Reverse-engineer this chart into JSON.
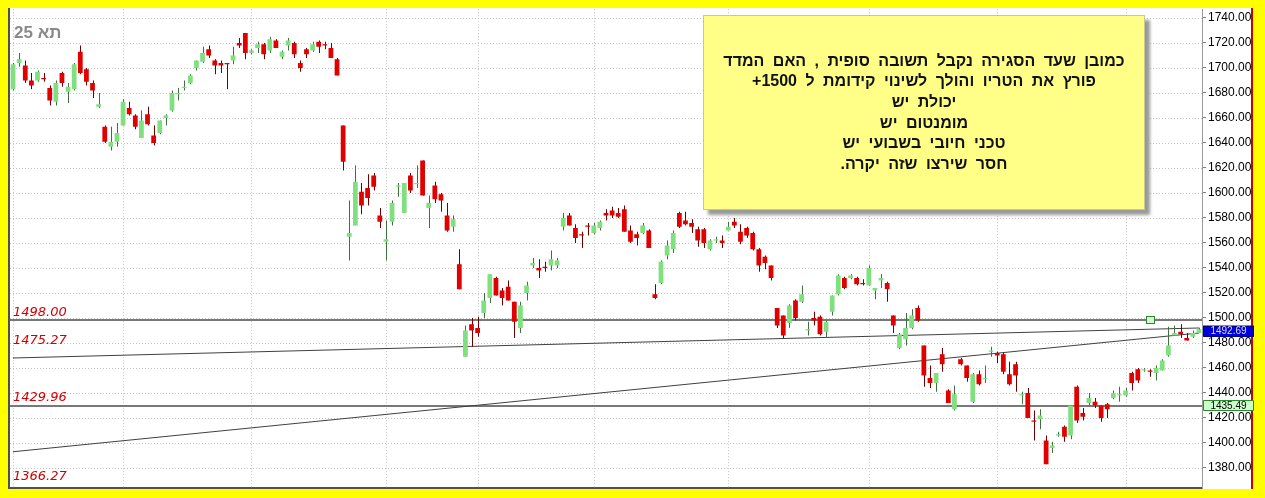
{
  "chart_data": {
    "type": "candlestick",
    "title": "תא 25",
    "categories": [
      null,
      null,
      null,
      null,
      null,
      null,
      null,
      null,
      null,
      null,
      null,
      null,
      null,
      null,
      null,
      null,
      null,
      null,
      null,
      null,
      null,
      null,
      null,
      null,
      null,
      null,
      null,
      null,
      null,
      null,
      null,
      null,
      null,
      null,
      null,
      null,
      null,
      null,
      null,
      null,
      null,
      null,
      null,
      null,
      null,
      null,
      null,
      null,
      null,
      null,
      null,
      null,
      null,
      null,
      null,
      null,
      null,
      null,
      null,
      null,
      null,
      null,
      null,
      null,
      null,
      null,
      null,
      null,
      null,
      null,
      null,
      null,
      null,
      null,
      null,
      null,
      null,
      null,
      null,
      null,
      null,
      null,
      null,
      null,
      null,
      null,
      null,
      null,
      null,
      null,
      null,
      null,
      null,
      null,
      null,
      null,
      null,
      null,
      null,
      null,
      null,
      null,
      null,
      null,
      null,
      null,
      null,
      null,
      null,
      null,
      null,
      null,
      null,
      null,
      null,
      null,
      null,
      null,
      null,
      null,
      null,
      null,
      null,
      null,
      null,
      null,
      null,
      null,
      null,
      null,
      null,
      null,
      null,
      null,
      null,
      null,
      null,
      null,
      null,
      null,
      null,
      null,
      null,
      null,
      null,
      null,
      null,
      null,
      null,
      null,
      null,
      null,
      null,
      null,
      null,
      null,
      null,
      null,
      null,
      null,
      null,
      null,
      null,
      null,
      null,
      null,
      null,
      null,
      null,
      null,
      null,
      null,
      null,
      null,
      null,
      null,
      null,
      null,
      null,
      null,
      null,
      null,
      null,
      null,
      null,
      null,
      null,
      null,
      null,
      null,
      null,
      null,
      null,
      null,
      null
    ],
    "ohlc": [
      [
        1683,
        1704,
        1682,
        1703
      ],
      [
        1704,
        1712,
        1701,
        1707
      ],
      [
        1702,
        1706,
        1688,
        1690
      ],
      [
        1690,
        1696,
        1683,
        1686
      ],
      [
        1690,
        1698,
        1689,
        1697
      ],
      [
        1692,
        1696,
        1689,
        1691
      ],
      [
        1684,
        1686,
        1670,
        1674
      ],
      [
        1673,
        1690,
        1670,
        1688
      ],
      [
        1696,
        1697,
        1685,
        1688
      ],
      [
        1681,
        1688,
        1672,
        1685
      ],
      [
        1683,
        1704,
        1682,
        1703
      ],
      [
        1713,
        1718,
        1695,
        1696
      ],
      [
        1699,
        1700,
        1686,
        1689
      ],
      [
        1688,
        1690,
        1676,
        1682
      ],
      [
        1669,
        1680,
        1668,
        1671
      ],
      [
        1653,
        1654,
        1640,
        1641
      ],
      [
        1637,
        1653,
        1634,
        1641
      ],
      [
        1641,
        1656,
        1637,
        1648
      ],
      [
        1654,
        1675,
        1654,
        1673
      ],
      [
        1668,
        1673,
        1662,
        1663
      ],
      [
        1662,
        1663,
        1651,
        1653
      ],
      [
        1644,
        1666,
        1644,
        1658
      ],
      [
        1663,
        1669,
        1654,
        1655
      ],
      [
        1646,
        1654,
        1638,
        1640
      ],
      [
        1648,
        1658,
        1647,
        1658
      ],
      [
        1660,
        1663,
        1654,
        1662
      ],
      [
        1666,
        1682,
        1665,
        1680
      ],
      [
        1679,
        1684,
        1674,
        1680
      ],
      [
        1684,
        1690,
        1682,
        1685
      ],
      [
        1688,
        1695,
        1687,
        1694
      ],
      [
        1700,
        1706,
        1698,
        1706
      ],
      [
        1705,
        1717,
        1704,
        1712
      ],
      [
        1715,
        1718,
        1708,
        1710
      ],
      [
        1706,
        1707,
        1695,
        1702
      ],
      [
        1704,
        1706,
        1696,
        1702
      ],
      [
        1704,
        1704,
        1683,
        1703
      ],
      [
        1706,
        1717,
        1703,
        1710
      ],
      [
        1720,
        1724,
        1716,
        1718
      ],
      [
        1728,
        1728,
        1707,
        1712
      ],
      [
        1712,
        1715,
        1711,
        1714
      ],
      [
        1716,
        1721,
        1712,
        1719
      ],
      [
        1719,
        1720,
        1707,
        1711
      ],
      [
        1714,
        1725,
        1712,
        1723
      ],
      [
        1722,
        1723,
        1716,
        1716
      ],
      [
        1709,
        1714,
        1707,
        1713
      ],
      [
        1718,
        1724,
        1714,
        1722
      ],
      [
        1720,
        1721,
        1708,
        1711
      ],
      [
        1704,
        1706,
        1697,
        1700
      ],
      [
        1715,
        1716,
        1708,
        1711
      ],
      [
        1714,
        1721,
        1713,
        1719
      ],
      [
        1721,
        1722,
        1712,
        1717
      ],
      [
        1719,
        1721,
        1715,
        1718
      ],
      [
        1716,
        1720,
        1708,
        1708
      ],
      [
        1707,
        1708,
        1694,
        1694
      ],
      [
        1654,
        1654,
        1618,
        1625
      ],
      [
        1565,
        1594,
        1546,
        1568
      ],
      [
        1574,
        1622,
        1574,
        1609
      ],
      [
        1601,
        1608,
        1583,
        1590
      ],
      [
        1604,
        1615,
        1590,
        1596
      ],
      [
        1614,
        1616,
        1602,
        1605
      ],
      [
        1582,
        1588,
        1572,
        1577
      ],
      [
        1561,
        1578,
        1546,
        1563
      ],
      [
        1577,
        1594,
        1574,
        1592
      ],
      [
        1605,
        1608,
        1597,
        1606
      ],
      [
        1584,
        1608,
        1584,
        1608
      ],
      [
        1614,
        1616,
        1600,
        1602
      ],
      [
        1607,
        1622,
        1604,
        1608
      ],
      [
        1626,
        1626,
        1598,
        1598
      ],
      [
        1588,
        1598,
        1572,
        1592
      ],
      [
        1606,
        1609,
        1592,
        1595
      ],
      [
        1599,
        1600,
        1585,
        1594
      ],
      [
        1582,
        1592,
        1569,
        1570
      ],
      [
        1573,
        1582,
        1569,
        1579
      ],
      [
        1543,
        1555,
        1523,
        1523
      ],
      [
        1469,
        1494,
        1469,
        1490
      ],
      [
        1495,
        1500,
        1477,
        1490
      ],
      [
        1492,
        1501,
        1485,
        1488
      ],
      [
        1504,
        1520,
        1500,
        1514
      ],
      [
        1516,
        1535,
        1512,
        1535
      ],
      [
        1532,
        1533,
        1518,
        1518
      ],
      [
        1522,
        1524,
        1510,
        1516
      ],
      [
        1525,
        1530,
        1514,
        1514
      ],
      [
        1513,
        1513,
        1484,
        1497
      ],
      [
        1492,
        1513,
        1488,
        1510
      ],
      [
        1520,
        1529,
        1514,
        1526
      ],
      [
        1542,
        1548,
        1540,
        1544
      ],
      [
        1540,
        1547,
        1532,
        1538
      ],
      [
        1541,
        1545,
        1537,
        1540
      ],
      [
        1542,
        1554,
        1538,
        1547
      ],
      [
        1542,
        1548,
        1540,
        1546
      ],
      [
        1573,
        1584,
        1570,
        1580
      ],
      [
        1582,
        1584,
        1574,
        1574
      ],
      [
        1572,
        1575,
        1560,
        1564
      ],
      [
        1567,
        1569,
        1556,
        1566
      ],
      [
        1574,
        1576,
        1566,
        1573
      ],
      [
        1568,
        1576,
        1567,
        1574
      ],
      [
        1572,
        1578,
        1570,
        1577
      ],
      [
        1584,
        1587,
        1578,
        1582
      ],
      [
        1586,
        1589,
        1580,
        1582
      ],
      [
        1584,
        1588,
        1580,
        1581
      ],
      [
        1587,
        1590,
        1569,
        1569
      ],
      [
        1570,
        1574,
        1560,
        1561
      ],
      [
        1567,
        1569,
        1558,
        1564
      ],
      [
        1568,
        1576,
        1567,
        1574
      ],
      [
        1570,
        1571,
        1556,
        1556
      ],
      [
        1519,
        1527,
        1515,
        1516
      ],
      [
        1528,
        1546,
        1527,
        1545
      ],
      [
        1550,
        1562,
        1547,
        1558
      ],
      [
        1555,
        1570,
        1552,
        1568
      ],
      [
        1584,
        1585,
        1572,
        1573
      ],
      [
        1578,
        1585,
        1574,
        1575
      ],
      [
        1576,
        1579,
        1568,
        1573
      ],
      [
        1571,
        1573,
        1557,
        1562
      ],
      [
        1571,
        1572,
        1556,
        1560
      ],
      [
        1555,
        1563,
        1554,
        1562
      ],
      [
        1562,
        1565,
        1560,
        1563
      ],
      [
        1562,
        1566,
        1556,
        1560
      ],
      [
        1570,
        1577,
        1570,
        1573
      ],
      [
        1577,
        1580,
        1572,
        1574
      ],
      [
        1569,
        1575,
        1559,
        1561
      ],
      [
        1572,
        1573,
        1564,
        1566
      ],
      [
        1568,
        1569,
        1554,
        1555
      ],
      [
        1555,
        1556,
        1537,
        1542
      ],
      [
        1549,
        1550,
        1539,
        1544
      ],
      [
        1542,
        1542,
        1530,
        1532
      ],
      [
        1508,
        1508,
        1492,
        1494
      ],
      [
        1502,
        1502,
        1484,
        1486
      ],
      [
        1496,
        1511,
        1492,
        1510
      ],
      [
        1514,
        1515,
        1498,
        1500
      ],
      [
        1513,
        1526,
        1512,
        1519
      ],
      [
        1490,
        1497,
        1486,
        1491
      ],
      [
        1500,
        1505,
        1494,
        1498
      ],
      [
        1501,
        1502,
        1486,
        1487
      ],
      [
        1489,
        1498,
        1484,
        1497
      ],
      [
        1505,
        1518,
        1502,
        1518
      ],
      [
        1519,
        1535,
        1518,
        1534
      ],
      [
        1532,
        1533,
        1523,
        1524
      ],
      [
        1532,
        1535,
        1531,
        1534
      ],
      [
        1532,
        1533,
        1526,
        1527
      ],
      [
        1528,
        1531,
        1526,
        1527
      ],
      [
        1526,
        1542,
        1526,
        1540
      ],
      [
        1522,
        1524,
        1515,
        1524
      ],
      [
        1530,
        1535,
        1524,
        1532
      ],
      [
        1528,
        1529,
        1513,
        1523
      ],
      [
        1502,
        1502,
        1488,
        1494
      ],
      [
        1476,
        1488,
        1475,
        1487
      ],
      [
        1483,
        1504,
        1478,
        1492
      ],
      [
        1492,
        1507,
        1491,
        1502
      ],
      [
        1508,
        1510,
        1497,
        1498
      ],
      [
        1478,
        1478,
        1445,
        1454
      ],
      [
        1452,
        1462,
        1444,
        1448
      ],
      [
        1448,
        1456,
        1441,
        1456
      ],
      [
        1471,
        1476,
        1457,
        1463
      ],
      [
        1442,
        1443,
        1432,
        1432
      ],
      [
        1427,
        1446,
        1426,
        1439
      ],
      [
        1467,
        1468,
        1462,
        1463
      ],
      [
        1462,
        1462,
        1449,
        1452
      ],
      [
        1433,
        1456,
        1432,
        1455
      ],
      [
        1455,
        1458,
        1446,
        1447
      ],
      [
        1451,
        1462,
        1448,
        1452
      ],
      [
        1473,
        1477,
        1469,
        1474
      ],
      [
        1472,
        1473,
        1464,
        1470
      ],
      [
        1471,
        1472,
        1455,
        1457
      ],
      [
        1455,
        1465,
        1446,
        1447
      ],
      [
        1463,
        1465,
        1441,
        1454
      ],
      [
        1438,
        1441,
        1431,
        1439
      ],
      [
        1440,
        1444,
        1420,
        1420
      ],
      [
        1418,
        1426,
        1402,
        1417
      ],
      [
        1419,
        1427,
        1411,
        1422
      ],
      [
        1402,
        1406,
        1383,
        1383
      ],
      [
        1396,
        1401,
        1392,
        1398
      ],
      [
        1406,
        1409,
        1405,
        1407
      ],
      [
        1413,
        1414,
        1401,
        1405
      ],
      [
        1406,
        1430,
        1403,
        1430
      ],
      [
        1445,
        1446,
        1416,
        1418
      ],
      [
        1424,
        1428,
        1418,
        1421
      ],
      [
        1432,
        1440,
        1430,
        1436
      ],
      [
        1433,
        1436,
        1428,
        1430
      ],
      [
        1430,
        1430,
        1417,
        1420
      ],
      [
        1431,
        1432,
        1420,
        1427
      ],
      [
        1436,
        1442,
        1435,
        1440
      ],
      [
        1438,
        1445,
        1433,
        1439
      ],
      [
        1438,
        1444,
        1437,
        1442
      ],
      [
        1456,
        1457,
        1442,
        1448
      ],
      [
        1459,
        1460,
        1448,
        1450
      ],
      [
        1458,
        1460,
        1457,
        1459
      ],
      [
        1458,
        1459,
        1453,
        1457
      ],
      [
        1456,
        1462,
        1450,
        1460
      ],
      [
        1458,
        1467,
        1458,
        1466
      ],
      [
        1470,
        1493,
        1469,
        1478
      ],
      [
        1486,
        1494,
        1486,
        1488
      ],
      [
        1489,
        1495,
        1484,
        1487
      ],
      [
        1484,
        1488,
        1482,
        1482
      ],
      [
        1485,
        1490,
        1484,
        1488
      ],
      [
        1488,
        1492,
        1488,
        1491
      ]
    ],
    "colors": [
      "#80e080",
      "#80e080",
      "#e00000",
      "#e00000",
      "#80e080",
      "#e00000",
      "#e00000",
      "#80e080",
      "#e00000",
      "#80e080",
      "#80e080",
      "#e00000",
      "#e00000",
      "#e00000",
      "#80e080",
      "#e00000",
      "#80e080",
      "#80e080",
      "#80e080",
      "#e00000",
      "#e00000",
      "#80e080",
      "#e00000",
      "#e00000",
      "#80e080",
      "#80e080",
      "#80e080",
      "#80e080",
      "#80e080",
      "#80e080",
      "#80e080",
      "#80e080",
      "#e00000",
      "#e00000",
      "#e00000",
      "#e00000",
      "#80e080",
      "#e00000",
      "#e00000",
      "#80e080",
      "#80e080",
      "#e00000",
      "#80e080",
      "#e00000",
      "#80e080",
      "#80e080",
      "#e00000",
      "#e00000",
      "#e00000",
      "#80e080",
      "#e00000",
      "#e00000",
      "#e00000",
      "#e00000",
      "#e00000",
      "#80e080",
      "#80e080",
      "#e00000",
      "#e00000",
      "#e00000",
      "#e00000",
      "#80e080",
      "#80e080",
      "#80e080",
      "#80e080",
      "#e00000",
      "#80e080",
      "#e00000",
      "#80e080",
      "#e00000",
      "#e00000",
      "#e00000",
      "#80e080",
      "#e00000",
      "#80e080",
      "#e00000",
      "#e00000",
      "#80e080",
      "#80e080",
      "#e00000",
      "#e00000",
      "#e00000",
      "#e00000",
      "#80e080",
      "#80e080",
      "#80e080",
      "#e00000",
      "#e00000",
      "#80e080",
      "#80e080",
      "#80e080",
      "#e00000",
      "#e00000",
      "#e00000",
      "#e00000",
      "#80e080",
      "#80e080",
      "#e00000",
      "#e00000",
      "#e00000",
      "#e00000",
      "#e00000",
      "#e00000",
      "#80e080",
      "#e00000",
      "#e00000",
      "#80e080",
      "#80e080",
      "#80e080",
      "#e00000",
      "#e00000",
      "#e00000",
      "#e00000",
      "#e00000",
      "#80e080",
      "#80e080",
      "#e00000",
      "#80e080",
      "#e00000",
      "#e00000",
      "#e00000",
      "#e00000",
      "#e00000",
      "#e00000",
      "#e00000",
      "#e00000",
      "#e00000",
      "#80e080",
      "#e00000",
      "#80e080",
      "#80e080",
      "#e00000",
      "#e00000",
      "#80e080",
      "#80e080",
      "#80e080",
      "#e00000",
      "#80e080",
      "#e00000",
      "#e00000",
      "#80e080",
      "#80e080",
      "#80e080",
      "#e00000",
      "#e00000",
      "#80e080",
      "#80e080",
      "#80e080",
      "#e00000",
      "#e00000",
      "#e00000",
      "#80e080",
      "#e00000",
      "#e00000",
      "#80e080",
      "#e00000",
      "#e00000",
      "#80e080",
      "#e00000",
      "#80e080",
      "#80e080",
      "#e00000",
      "#e00000",
      "#e00000",
      "#e00000",
      "#80e080",
      "#e00000",
      "#e00000",
      "#80e080",
      "#e00000",
      "#80e080",
      "#80e080",
      "#e00000",
      "#80e080",
      "#e00000",
      "#e00000",
      "#80e080",
      "#e00000",
      "#e00000",
      "#e00000",
      "#80e080",
      "#80e080",
      "#80e080",
      "#e00000",
      "#e00000",
      "#80e080",
      "#e00000",
      "#80e080",
      "#80e080",
      "#80e080",
      "#80e080",
      "#e00000",
      "#e00000",
      "#80e080",
      "#80e080"
    ],
    "series": [
      {
        "type": "line",
        "color": "#404040",
        "values": [
          1468,
          null,
          null,
          null,
          null,
          null,
          null,
          null,
          null,
          null,
          null,
          null,
          null,
          null,
          null,
          null,
          null,
          null,
          null,
          null,
          null,
          null,
          null,
          null,
          null,
          null,
          null,
          null,
          null,
          null,
          null,
          null,
          null,
          null,
          null,
          null,
          null,
          null,
          null,
          null,
          null,
          null,
          null,
          null,
          null,
          null,
          null,
          null,
          null,
          null,
          null,
          null,
          null,
          null,
          null,
          null,
          null,
          null,
          null,
          null,
          null,
          null,
          null,
          null,
          null,
          null,
          null,
          null,
          null,
          null,
          null,
          null,
          null,
          null,
          null,
          null,
          null,
          null,
          null,
          null,
          null,
          null,
          null,
          null,
          null,
          null,
          null,
          null,
          null,
          null,
          null,
          null,
          null,
          null,
          null,
          null,
          null,
          null,
          null,
          null,
          null,
          null,
          null,
          null,
          null,
          null,
          null,
          null,
          null,
          null,
          null,
          null,
          null,
          null,
          null,
          null,
          null,
          null,
          null,
          null,
          null,
          null,
          null,
          null,
          null,
          null,
          null,
          null,
          null,
          null,
          null,
          null,
          null,
          null,
          null,
          null,
          null,
          null,
          null,
          null,
          null,
          null,
          null,
          null,
          null,
          null,
          null,
          null,
          null,
          null,
          null,
          null,
          null,
          null,
          null,
          null,
          null,
          null,
          null,
          null,
          null,
          null,
          null,
          null,
          null,
          null,
          null,
          null,
          null,
          null,
          null,
          null,
          null,
          null,
          null,
          null,
          null,
          null,
          null,
          null,
          null,
          null,
          null,
          null,
          null,
          null,
          null,
          null,
          null,
          null,
          null,
          null,
          null,
          null,
          1492
        ]
      },
      {
        "type": "line",
        "color": "#404040",
        "values": [
          1393,
          null,
          null,
          null,
          null,
          null,
          null,
          null,
          null,
          null,
          null,
          null,
          null,
          null,
          null,
          null,
          null,
          null,
          null,
          null,
          null,
          null,
          null,
          null,
          null,
          null,
          null,
          null,
          null,
          null,
          null,
          null,
          null,
          null,
          null,
          null,
          null,
          null,
          null,
          null,
          null,
          null,
          null,
          null,
          null,
          null,
          null,
          null,
          null,
          null,
          null,
          null,
          null,
          null,
          null,
          null,
          null,
          null,
          null,
          null,
          null,
          null,
          null,
          null,
          null,
          null,
          null,
          null,
          null,
          null,
          null,
          null,
          null,
          null,
          null,
          null,
          null,
          null,
          null,
          null,
          null,
          null,
          null,
          null,
          null,
          null,
          null,
          null,
          null,
          null,
          null,
          null,
          null,
          null,
          null,
          null,
          null,
          null,
          null,
          null,
          null,
          null,
          null,
          null,
          null,
          null,
          null,
          null,
          null,
          null,
          null,
          null,
          null,
          null,
          null,
          null,
          null,
          null,
          null,
          null,
          null,
          null,
          null,
          null,
          null,
          null,
          null,
          null,
          null,
          null,
          null,
          null,
          null,
          null,
          null,
          null,
          null,
          null,
          null,
          null,
          null,
          null,
          null,
          null,
          null,
          null,
          null,
          null,
          null,
          null,
          null,
          null,
          null,
          null,
          null,
          null,
          null,
          null,
          null,
          null,
          null,
          null,
          null,
          null,
          null,
          null,
          null,
          null,
          null,
          null,
          null,
          null,
          null,
          null,
          null,
          null,
          null,
          null,
          null,
          null,
          null,
          null,
          null,
          null,
          null,
          null,
          null,
          null,
          null,
          null,
          null,
          null,
          null,
          null,
          1488
        ]
      }
    ],
    "ylim": [
      1364,
      1747
    ],
    "yticks": [
      {
        "value": 1380,
        "label": "1380.00"
      },
      {
        "value": 1400,
        "label": "1400.00"
      },
      {
        "value": 1420,
        "label": "1420.00"
      },
      {
        "value": 1440,
        "label": "1440.00"
      },
      {
        "value": 1460,
        "label": "1460.00"
      },
      {
        "value": 1480,
        "label": "1480.00"
      },
      {
        "value": 1500,
        "label": "1500.00"
      },
      {
        "value": 1520,
        "label": "1520.00"
      },
      {
        "value": 1540,
        "label": "1540.00"
      },
      {
        "value": 1560,
        "label": "1560.00"
      },
      {
        "value": 1580,
        "label": "1580.00"
      },
      {
        "value": 1600,
        "label": "1600.00"
      },
      {
        "value": 1620,
        "label": "1620.00"
      },
      {
        "value": 1640,
        "label": "1640.00"
      },
      {
        "value": 1660,
        "label": "1660.00"
      },
      {
        "value": 1680,
        "label": "1680.00"
      },
      {
        "value": 1700,
        "label": "1700.00"
      },
      {
        "value": 1720,
        "label": "1720.00"
      },
      {
        "value": 1740,
        "label": "1740.00"
      }
    ],
    "ref_lines": [
      {
        "axis": "y",
        "value": 1498,
        "label": "1498.00",
        "color": "#787878"
      },
      {
        "axis": "y",
        "value": 1429.96,
        "label": "1429.96",
        "color": "#787878"
      }
    ],
    "annotations": [
      "כמובן שעד הסגירה נקבל תשובה סופית , האם המדד\nפורץ את הטריו והולך לשינוי קידומת ל 1500+\nיכולת יש\nמומנטום יש\nטכני חיובי בשבועי יש\nחסר שירצו שזה יקרה.",
      "1475.27",
      "1366.27",
      "1492.69",
      "1435.49"
    ],
    "grid": "y",
    "tick_labels": "y"
  }
}
